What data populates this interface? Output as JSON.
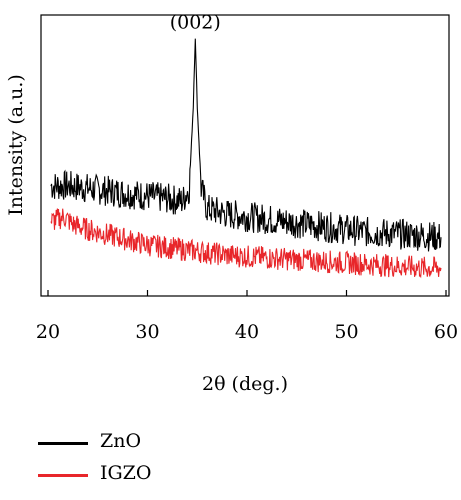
{
  "chart_data": {
    "type": "line",
    "xlabel": "2θ (deg.)",
    "ylabel": "Intensity (a.u.)",
    "xlim": [
      20,
      60
    ],
    "xticks": [
      20,
      30,
      40,
      50,
      60
    ],
    "ylim": [
      0,
      100
    ],
    "y_ticks_shown": false,
    "grid": false,
    "legend_position": "below-left",
    "annotations": [
      {
        "text": "(002)",
        "x": 34.8,
        "y": 97
      }
    ],
    "series": [
      {
        "name": "ZnO",
        "color": "#000000",
        "points": [
          [
            20.3,
            39
          ],
          [
            22,
            39
          ],
          [
            24,
            38
          ],
          [
            26,
            37
          ],
          [
            28,
            36
          ],
          [
            30,
            35
          ],
          [
            32,
            34
          ],
          [
            33.5,
            33
          ],
          [
            34.2,
            38
          ],
          [
            34.6,
            70
          ],
          [
            34.8,
            97
          ],
          [
            35.0,
            70
          ],
          [
            35.4,
            38
          ],
          [
            36,
            30
          ],
          [
            38,
            28
          ],
          [
            40,
            27
          ],
          [
            42,
            26
          ],
          [
            44,
            25
          ],
          [
            46,
            24
          ],
          [
            48,
            23
          ],
          [
            50,
            22
          ],
          [
            52,
            21
          ],
          [
            54,
            20.5
          ],
          [
            56,
            20
          ],
          [
            58,
            19.5
          ],
          [
            59.5,
            19
          ]
        ]
      },
      {
        "name": "IGZO",
        "color": "#e8262a",
        "points": [
          [
            20.3,
            25
          ],
          [
            21,
            26
          ],
          [
            21.6,
            27
          ],
          [
            22.5,
            24
          ],
          [
            24,
            22
          ],
          [
            26,
            20
          ],
          [
            28,
            18
          ],
          [
            30,
            16
          ],
          [
            32,
            15
          ],
          [
            34,
            14
          ],
          [
            36,
            13
          ],
          [
            38,
            12
          ],
          [
            40,
            11.5
          ],
          [
            42,
            11
          ],
          [
            44,
            10.5
          ],
          [
            46,
            10
          ],
          [
            48,
            9.5
          ],
          [
            50,
            9
          ],
          [
            52,
            8.5
          ],
          [
            54,
            8
          ],
          [
            56,
            7.5
          ],
          [
            58,
            7
          ],
          [
            59.5,
            7
          ]
        ]
      }
    ]
  }
}
